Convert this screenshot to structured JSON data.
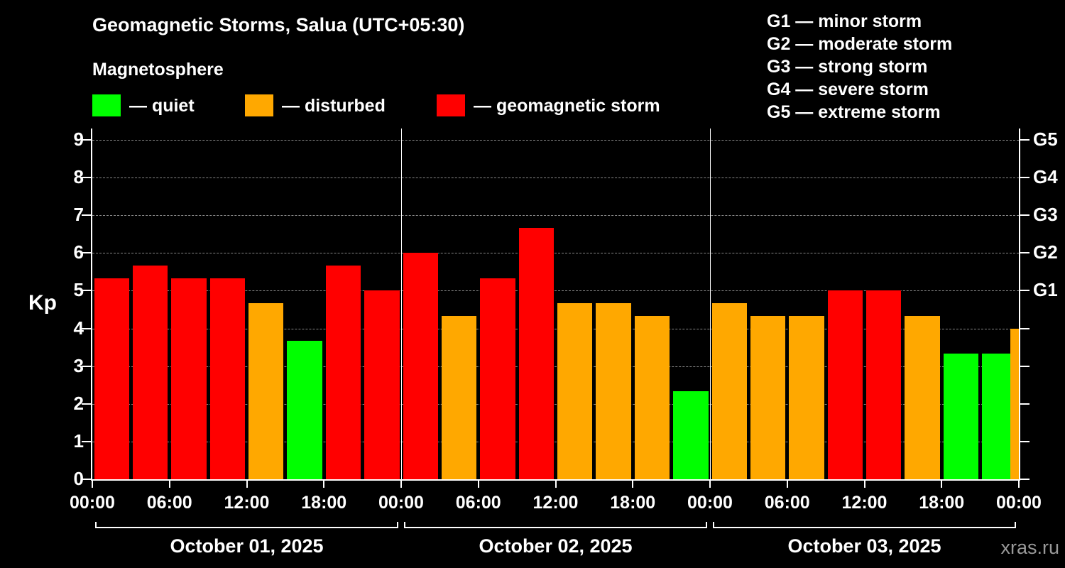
{
  "title": "Geomagnetic Storms, Salua (UTC+05:30)",
  "subtitle": "Magnetosphere",
  "legend": [
    {
      "key": "quiet",
      "label": "— quiet"
    },
    {
      "key": "disturbed",
      "label": "— disturbed"
    },
    {
      "key": "storm",
      "label": "— geomagnetic storm"
    }
  ],
  "g_scale_legend": [
    "G1 — minor storm",
    "G2 — moderate storm",
    "G3 — strong storm",
    "G4 — severe storm",
    "G5 — extreme storm"
  ],
  "y_axis_label": "Kp",
  "watermark": "xras.ru",
  "chart_data": {
    "type": "bar",
    "title": "Geomagnetic Storms, Salua (UTC+05:30)",
    "ylabel": "Kp",
    "ylim": [
      0,
      9.3
    ],
    "y_ticks": [
      0,
      1,
      2,
      3,
      4,
      5,
      6,
      7,
      8,
      9
    ],
    "grid": "dashed horizontal gridlines at integer Kp values",
    "legend_position": "top-left",
    "colors": {
      "quiet": "#00ff00",
      "disturbed": "#ffa800",
      "storm": "#ff0000"
    },
    "right_axis_labels": [
      {
        "kp": 5,
        "label": "G1"
      },
      {
        "kp": 6,
        "label": "G2"
      },
      {
        "kp": 7,
        "label": "G3"
      },
      {
        "kp": 8,
        "label": "G4"
      },
      {
        "kp": 9,
        "label": "G5"
      }
    ],
    "x_ticks": [
      {
        "hour": 0,
        "label": "00:00"
      },
      {
        "hour": 6,
        "label": "06:00"
      },
      {
        "hour": 12,
        "label": "12:00"
      },
      {
        "hour": 18,
        "label": "18:00"
      },
      {
        "hour": 24,
        "label": "00:00"
      },
      {
        "hour": 30,
        "label": "06:00"
      },
      {
        "hour": 36,
        "label": "12:00"
      },
      {
        "hour": 42,
        "label": "18:00"
      },
      {
        "hour": 48,
        "label": "00:00"
      },
      {
        "hour": 54,
        "label": "06:00"
      },
      {
        "hour": 60,
        "label": "12:00"
      },
      {
        "hour": 66,
        "label": "18:00"
      },
      {
        "hour": 72,
        "label": "00:00"
      }
    ],
    "days": [
      {
        "label": "October 01, 2025",
        "start_hour": 0,
        "end_hour": 24
      },
      {
        "label": "October 02, 2025",
        "start_hour": 24,
        "end_hour": 48
      },
      {
        "label": "October 03, 2025",
        "start_hour": 48,
        "end_hour": 72
      }
    ],
    "bar_duration_hours": 3,
    "bars": [
      {
        "hour": 0,
        "kp": 5.33,
        "status": "storm"
      },
      {
        "hour": 3,
        "kp": 5.67,
        "status": "storm"
      },
      {
        "hour": 6,
        "kp": 5.33,
        "status": "storm"
      },
      {
        "hour": 9,
        "kp": 5.33,
        "status": "storm"
      },
      {
        "hour": 12,
        "kp": 4.67,
        "status": "disturbed"
      },
      {
        "hour": 15,
        "kp": 3.67,
        "status": "quiet"
      },
      {
        "hour": 18,
        "kp": 5.67,
        "status": "storm"
      },
      {
        "hour": 21,
        "kp": 5.0,
        "status": "storm"
      },
      {
        "hour": 24,
        "kp": 6.0,
        "status": "storm"
      },
      {
        "hour": 27,
        "kp": 4.33,
        "status": "disturbed"
      },
      {
        "hour": 30,
        "kp": 5.33,
        "status": "storm"
      },
      {
        "hour": 33,
        "kp": 6.67,
        "status": "storm"
      },
      {
        "hour": 36,
        "kp": 4.67,
        "status": "disturbed"
      },
      {
        "hour": 39,
        "kp": 4.67,
        "status": "disturbed"
      },
      {
        "hour": 42,
        "kp": 4.33,
        "status": "disturbed"
      },
      {
        "hour": 45,
        "kp": 2.33,
        "status": "quiet"
      },
      {
        "hour": 48,
        "kp": 4.67,
        "status": "disturbed"
      },
      {
        "hour": 51,
        "kp": 4.33,
        "status": "disturbed"
      },
      {
        "hour": 54,
        "kp": 4.33,
        "status": "disturbed"
      },
      {
        "hour": 57,
        "kp": 5.0,
        "status": "storm"
      },
      {
        "hour": 60,
        "kp": 5.0,
        "status": "storm"
      },
      {
        "hour": 63,
        "kp": 4.33,
        "status": "disturbed"
      },
      {
        "hour": 66,
        "kp": 3.33,
        "status": "quiet"
      },
      {
        "hour": 69,
        "kp": 3.33,
        "status": "quiet"
      },
      {
        "hour": 72,
        "kp": 4.0,
        "status": "disturbed",
        "partial": true
      }
    ]
  }
}
